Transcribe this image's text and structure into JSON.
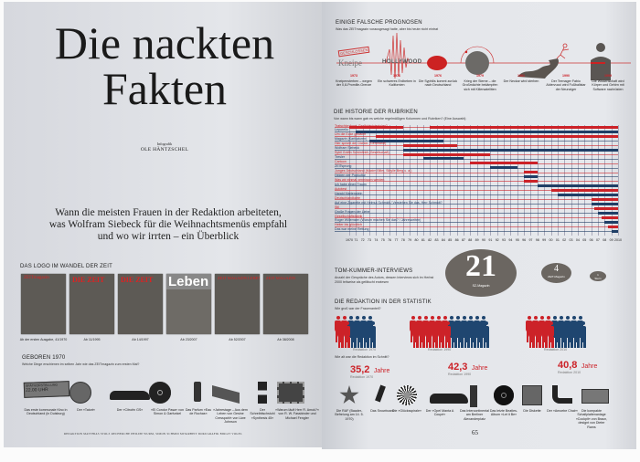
{
  "left": {
    "title_line1": "Die nackten",
    "title_line2": "Fakten",
    "credit_label": "Infografik",
    "credit_name": "OLE HÄNTZSCHEL",
    "intro": [
      "Wann die meisten Frauen in der Redaktion arbeiteten,",
      "was Wolfram Siebeck für die Weihnachtsmenüs empfahl",
      "und wo wir irrten – ein Überblick"
    ],
    "logo_section": {
      "heading": "DAS LOGO IM WANDEL DER ZEIT",
      "covers": [
        {
          "logo": "ZEITmagazin",
          "caption": "Ab der ersten Ausgabe, 41/1970"
        },
        {
          "logo": "DIE ZEIT",
          "caption": "Ab 11/1995"
        },
        {
          "logo": "DIE ZEIT",
          "caption": "Ab 14/1997"
        },
        {
          "logo": "Leben",
          "caption": "Ab 23/2007"
        },
        {
          "logo": "ZEIT MAGAZIN LEBEN",
          "caption": "Ab 52/2007"
        },
        {
          "logo": "ZEIT MAGAZIN",
          "caption": "Ab 38/2008"
        }
      ]
    },
    "born": {
      "heading": "GEBOREN 1970",
      "sub": "Welche Dinge erschienen im selben Jahr wie das ZEITmagazin zum ersten Mal?",
      "sign_text": [
        "SPÄTVORSTELLUNG",
        "22.00 UHR"
      ],
      "items": [
        "Das erste kommunale Kino in Deutschland (in Duisburg)",
        "Der »Tatort«",
        "Der »Citroën GS«",
        "»El Condor Pasa« von Simon & Garfunkel",
        "Das Parfum »Eau de Rochas«",
        "»Jahrestage – Aus dem Leben von Gesine Cresspahl« von Uwe Johnson",
        "Der Schreibtischstuhl »Synthesis 45«",
        "»Warum läuft Herr R. Amok?« von R. W. Fassbinder und Michael Fengler"
      ]
    },
    "footer": "REDAKTION MATTHIAS STOLZ   RECHERCHE PHILIPP WURM, SIMON SCHMID   MITARBEIT DOKUGRAFIK BIRGIT VOGEL"
  },
  "right": {
    "prognoses": {
      "heading": "EINIGE FALSCHE PROGNOSEN",
      "sub": "Was das ZEITmagazin vorausgesagt hatte, aber bis heute nicht eintrat",
      "stamp": "GESCHLOSSEN",
      "script_word": "Kneipe",
      "hollywood": "HOLLYWOOD",
      "items": [
        {
          "year": "1973",
          "text": "Kneipensterben – wegen der 0,8-Promille-Grenze"
        },
        {
          "year": "1976",
          "text": "Ein schweres Erdbeben in Kalifornien"
        },
        {
          "year": "1976",
          "text": "Die Syphilis kommt zurück nach Deutschland"
        },
        {
          "year": "1979",
          "text": "Krieg der Sterne – die Großmächte bekämpfen sich mit Killersatelliten"
        },
        {
          "year": "1981",
          "text": "Der Neckar wird sterben"
        },
        {
          "year": "1990",
          "text": "Der Teenager Fabio Aldervucci wird Fußballstar der Neunziger"
        },
        {
          "year": "1999",
          "text": "Die Wissenschaft wird Körper und Gehirn mit Software nachrüsten"
        }
      ]
    },
    "history": {
      "heading": "DIE HISTORIE DER RUBRIKEN",
      "sub": "Von wann bis wann gab es welche regelmäßigen Kolumnen und Rubriken? (Eine Auswahl)"
    },
    "kummer": {
      "heading": "TOM-KUMMER-INTERVIEWS",
      "sub": "Anzahl der Gespräche des Autors, dessen Interviews sich im Herbst 2000 teilweise als gefälscht erwiesen",
      "bubbles": [
        {
          "value": "21",
          "label": "SZ-Magazin"
        },
        {
          "value": "4",
          "label": "ZEIT-Magazin"
        },
        {
          "value": "1",
          "label": "Stern"
        }
      ]
    },
    "stats": {
      "heading": "DIE REDAKTION IN DER STATISTIK",
      "sub": "Wie groß war der Frauenanteil?",
      "age_question": "Wie alt war die Redaktion im Schnitt?",
      "groups": [
        {
          "label": "Redaktion 1970",
          "women": 4,
          "men": 8,
          "age": "35,2",
          "unit": "Jahre"
        },
        {
          "label": "Redaktion 1990",
          "women": 12,
          "men": 12,
          "age": "42,3",
          "unit": "Jahre"
        },
        {
          "label": "Redaktion 2010",
          "women": 8,
          "men": 10,
          "age": "40,8",
          "unit": "Jahre"
        }
      ]
    },
    "items2010": [
      "Die RAF (Baader-Befreiung am 14. 5. 1970)",
      "Das Snowboard",
      "Die »Glücksspirale«",
      "Der »Opel Manta A Coupé«",
      "Das Intercontinental am Berliner Alexanderplatz",
      "Das letzte Beatles-Album »Let it Be«",
      "Die Diskette",
      "Der »Amoebe Chair«",
      "Die kompakte Schallplattenanlage »Cockpit« von Braun, designt von Dieter Rams"
    ],
    "page_number": "65"
  },
  "chart_data": {
    "type": "gantt",
    "title": "DIE HISTORIE DER RUBRIKEN",
    "xlim": [
      1970,
      2010
    ],
    "ticks": [
      "1970",
      "71",
      "72",
      "73",
      "74",
      "75",
      "76",
      "77",
      "78",
      "79",
      "80",
      "81",
      "82",
      "83",
      "84",
      "85",
      "86",
      "87",
      "88",
      "89",
      "90",
      "91",
      "92",
      "93",
      "94",
      "95",
      "96",
      "97",
      "98",
      "99",
      "00",
      "01",
      "02",
      "03",
      "04",
      "05",
      "06",
      "07",
      "08",
      "09",
      "2010"
    ],
    "colors": {
      "red": "#cc2228",
      "blue": "#1f3e66"
    },
    "rows": [
      {
        "label": "Tratschke fragt: Gedächtnistraining?",
        "color": "red",
        "spans": [
          [
            1970,
            1978
          ],
          [
            1982,
            2010
          ]
        ]
      },
      {
        "label": "Leporello",
        "color": "blue",
        "spans": [
          [
            1971,
            2010
          ]
        ]
      },
      {
        "label": "Um die Ecke gedacht",
        "color": "red",
        "spans": [
          [
            1974,
            2010
          ]
        ]
      },
      {
        "label": "Magazin (Karikaturen)",
        "color": "blue",
        "spans": [
          [
            1973,
            1984
          ]
        ]
      },
      {
        "label": "Hier spricht der Dichter (Gernhardt)",
        "color": "red",
        "spans": [
          [
            1978,
            1986
          ]
        ]
      },
      {
        "label": "Wolfram Siebeck",
        "color": "blue",
        "spans": [
          [
            1978,
            2010
          ]
        ]
      },
      {
        "label": "Sybil Gräfin Schönfeldt (Gesellschaft)",
        "color": "red",
        "spans": [
          [
            1978,
            1991
          ]
        ]
      },
      {
        "label": "Tresler",
        "color": "blue",
        "spans": [
          [
            1981,
            1987
          ]
        ]
      },
      {
        "label": "Cartoon",
        "color": "red",
        "spans": [
          [
            1988,
            1998
          ]
        ]
      },
      {
        "label": "ZEITsprung",
        "color": "blue",
        "spans": [
          [
            1991,
            1995
          ]
        ]
      },
      {
        "label": "Junges Deutschland (Maxim Biller, Sibylle Berg u. a.)",
        "color": "red",
        "spans": [
          [
            1996,
            1998
          ]
        ]
      },
      {
        "label": "Helden der Popkultur",
        "color": "blue",
        "spans": [
          [
            1996,
            1998
          ]
        ]
      },
      {
        "label": "Was wir einmal vermissen werden",
        "color": "red",
        "spans": [
          [
            1996,
            1998
          ]
        ]
      },
      {
        "label": "Ich habe einen Traum",
        "color": "blue",
        "spans": [
          [
            1998,
            2010
          ]
        ]
      },
      {
        "label": "Autotest",
        "color": "red",
        "spans": [
          [
            2000,
            2010
          ]
        ]
      },
      {
        "label": "Harald Martenstein",
        "color": "blue",
        "spans": [
          [
            2001,
            2010
          ]
        ]
      },
      {
        "label": "Deutschlandkarte",
        "color": "red",
        "spans": [
          [
            2006,
            2010
          ]
        ]
      },
      {
        "label": "Auf eine Zigarette mit Helmut Schmidt / Verstehen Sie das, Herr Schmidt?",
        "color": "blue",
        "spans": [
          [
            2006,
            2010
          ]
        ]
      },
      {
        "label": "Stil",
        "color": "red",
        "spans": [
          [
            2006.5,
            2010
          ]
        ]
      },
      {
        "label": "Große Fragen der Liebe",
        "color": "blue",
        "spans": [
          [
            2007,
            2010
          ]
        ]
      },
      {
        "label": "Gesellschaftsfabrik",
        "color": "red",
        "spans": [
          [
            2007.5,
            2010
          ]
        ]
      },
      {
        "label": "Roger Willemsen (Warum machen Sie das? / Jahreszeiten)",
        "color": "blue",
        "spans": [
          [
            2008,
            2010
          ]
        ]
      },
      {
        "label": "Heiter bis glücklich",
        "color": "red",
        "spans": [
          [
            2008.5,
            2010
          ]
        ]
      },
      {
        "label": "Das war meine Rettung",
        "color": "blue",
        "spans": [
          [
            2009,
            2010
          ]
        ]
      }
    ]
  }
}
